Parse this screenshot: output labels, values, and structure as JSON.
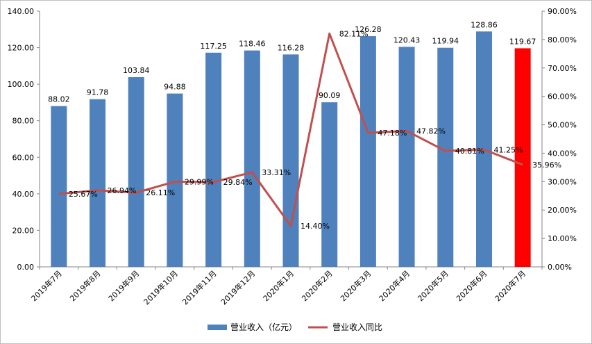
{
  "chart_data": {
    "type": "bar",
    "categories": [
      "2019年7月",
      "2019年8月",
      "2019年9月",
      "2019年10月",
      "2019年11月",
      "2019年12月",
      "2020年1月",
      "2020年2月",
      "2020年3月",
      "2020年4月",
      "2020年5月",
      "2020年6月",
      "2020年7月"
    ],
    "series": [
      {
        "name": "营业收入（亿元）",
        "type": "bar",
        "axis": "left",
        "color": "#4f81bd",
        "highlight_color": "#ff0000",
        "highlight_index": 12,
        "values": [
          88.02,
          91.78,
          103.84,
          94.88,
          117.25,
          118.46,
          116.28,
          90.09,
          126.28,
          120.43,
          119.94,
          128.86,
          119.67
        ],
        "labels": [
          "88.02",
          "91.78",
          "103.84",
          "94.88",
          "117.25",
          "118.46",
          "116.28",
          "90.09",
          "126.28",
          "120.43",
          "119.94",
          "128.86",
          "119.67"
        ]
      },
      {
        "name": "营业收入同比",
        "type": "line",
        "axis": "right",
        "color": "#c0504d",
        "values": [
          25.67,
          26.94,
          26.11,
          29.99,
          29.84,
          33.31,
          14.4,
          82.11,
          47.18,
          47.82,
          40.81,
          41.25,
          35.96
        ],
        "labels": [
          "25.67%",
          "26.94%",
          "26.11%",
          "29.99%",
          "29.84%",
          "33.31%",
          "14.40%",
          "82.11%",
          "47.18%",
          "47.82%",
          "40.81%",
          "41.25%",
          "35.96%"
        ]
      }
    ],
    "y_left": {
      "ylim": [
        0,
        140
      ],
      "ticks": [
        0,
        20,
        40,
        60,
        80,
        100,
        120,
        140
      ],
      "tick_labels": [
        "0.00",
        "20.00",
        "40.00",
        "60.00",
        "80.00",
        "100.00",
        "120.00",
        "140.00"
      ]
    },
    "y_right": {
      "ylim": [
        0,
        90
      ],
      "ticks": [
        0,
        10,
        20,
        30,
        40,
        50,
        60,
        70,
        80,
        90
      ],
      "tick_labels": [
        "0.00%",
        "10.00%",
        "20.00%",
        "30.00%",
        "40.00%",
        "50.00%",
        "60.00%",
        "70.00%",
        "80.00%",
        "90.00%"
      ]
    },
    "grid": false,
    "legend_position": "bottom"
  }
}
